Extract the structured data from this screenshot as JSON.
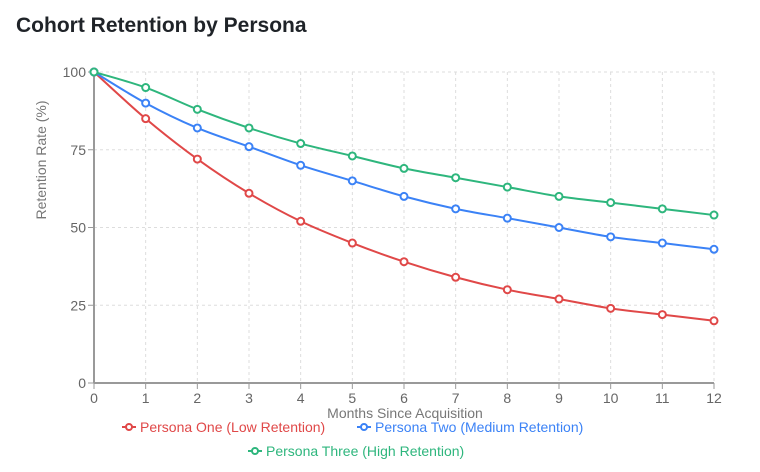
{
  "title": "Cohort Retention by Persona",
  "chart_data": {
    "type": "line",
    "title": "Cohort Retention by Persona",
    "xlabel": "Months Since Acquisition",
    "ylabel": "Retention Rate (%)",
    "x": [
      0,
      1,
      2,
      3,
      4,
      5,
      6,
      7,
      8,
      9,
      10,
      11,
      12
    ],
    "xlim": [
      0,
      12
    ],
    "ylim": [
      0,
      100
    ],
    "yticks": [
      0,
      25,
      50,
      75,
      100
    ],
    "grid": true,
    "legend_position": "bottom",
    "series": [
      {
        "name": "Persona One (Low Retention)",
        "color": "#e04848",
        "values": [
          100,
          85,
          72,
          61,
          52,
          45,
          39,
          34,
          30,
          27,
          24,
          22,
          20
        ]
      },
      {
        "name": "Persona Two (Medium Retention)",
        "color": "#3b82f6",
        "values": [
          100,
          90,
          82,
          76,
          70,
          65,
          60,
          56,
          53,
          50,
          47,
          45,
          43
        ]
      },
      {
        "name": "Persona Three (High Retention)",
        "color": "#2eb67d",
        "values": [
          100,
          95,
          88,
          82,
          77,
          73,
          69,
          66,
          63,
          60,
          58,
          56,
          54
        ]
      }
    ]
  }
}
